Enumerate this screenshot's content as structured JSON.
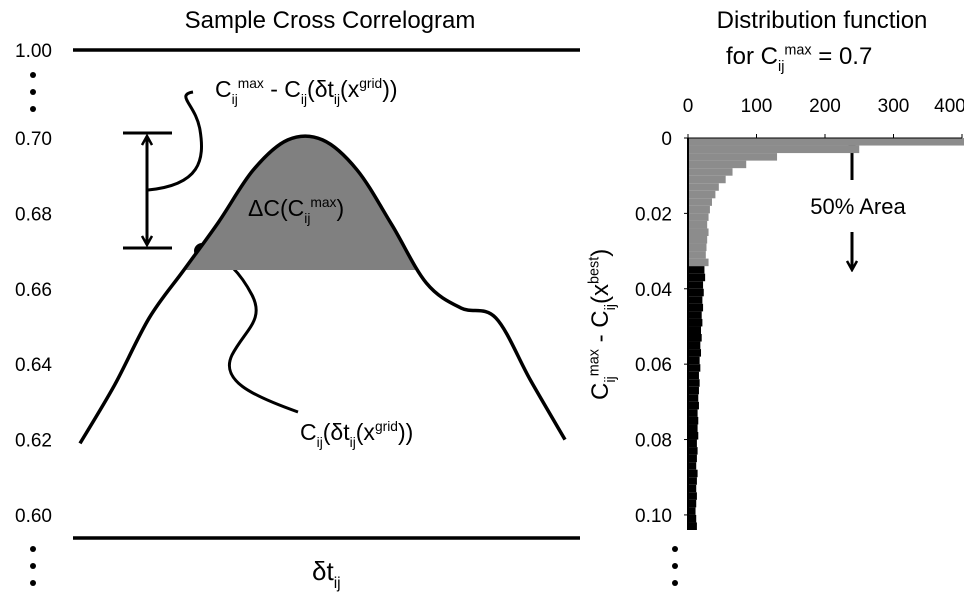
{
  "chart_data": [
    {
      "type": "line",
      "title": "Sample Cross Correlogram",
      "xlabel": [
        {
          "text": "δt",
          "pos": "base"
        },
        {
          "text": "ij",
          "pos": "sub"
        }
      ],
      "categories": [
        null,
        null,
        null,
        null,
        null,
        null,
        null,
        null,
        null,
        null,
        null,
        null,
        null,
        null,
        null
      ],
      "values": [
        0.619,
        0.6345,
        0.6523,
        0.665,
        0.6777,
        0.6915,
        0.6995,
        0.6995,
        0.6915,
        0.677,
        0.6615,
        0.6549,
        0.6523,
        0.6358,
        0.62
      ],
      "color": "#000000",
      "fill_color": "#808080",
      "fill_above": 0.665,
      "ylim": [
        0.6,
        0.7
      ],
      "yticks": [
        {
          "value": 0.6,
          "label": "0.60"
        },
        0.62,
        0.64,
        0.66,
        0.68,
        {
          "value": 0.7,
          "label": "0.70"
        }
      ],
      "top_tick": {
        "value": 1,
        "label": "1.00"
      },
      "annotations": [
        [
          {
            "text": "C",
            "pos": "base"
          },
          {
            "text": "ij",
            "pos": "sub"
          },
          {
            "text": "max",
            "pos": "sup"
          },
          {
            "text": " - C",
            "pos": "base"
          },
          {
            "text": "ij",
            "pos": "sub"
          },
          {
            "text": "(δt",
            "pos": "base"
          },
          {
            "text": "ij",
            "pos": "sub"
          },
          {
            "text": "(x",
            "pos": "base"
          },
          {
            "text": "grid",
            "pos": "sup"
          },
          {
            "text": "))",
            "pos": "base"
          }
        ],
        [
          {
            "text": "ΔC(C",
            "pos": "base"
          },
          {
            "text": "ij",
            "pos": "sub"
          },
          {
            "text": "max",
            "pos": "sup"
          },
          {
            "text": ")",
            "pos": "base"
          }
        ],
        [
          {
            "text": "C",
            "pos": "base"
          },
          {
            "text": "ij",
            "pos": "sub"
          },
          {
            "text": "(δt",
            "pos": "base"
          },
          {
            "text": "ij",
            "pos": "sub"
          },
          {
            "text": "(x",
            "pos": "base"
          },
          {
            "text": "grid",
            "pos": "sup"
          },
          {
            "text": "))",
            "pos": "base"
          }
        ]
      ]
    },
    {
      "type": "histogram",
      "title": [
        {
          "text": "Distribution function",
          "pos": "base"
        }
      ],
      "subtitle": [
        {
          "text": "for C",
          "pos": "base"
        },
        {
          "text": "ij",
          "pos": "sub"
        },
        {
          "text": "max",
          "pos": "sup"
        },
        {
          "text": " = 0.7",
          "pos": "base"
        }
      ],
      "ylabel": [
        {
          "text": "C",
          "pos": "base"
        },
        {
          "text": "ij",
          "pos": "sub"
        },
        {
          "text": "max",
          "pos": "sup"
        },
        {
          "text": " - C",
          "pos": "base"
        },
        {
          "text": "ij",
          "pos": "sub"
        },
        {
          "text": "(x",
          "pos": "base"
        },
        {
          "text": "best",
          "pos": "sup"
        },
        {
          "text": ")",
          "pos": "base"
        }
      ],
      "annotation": "50% Area",
      "bins": [
        0,
        0.002,
        0.004,
        0.006,
        0.008,
        0.01,
        0.012,
        0.014,
        0.016,
        0.018,
        0.02,
        0.022,
        0.024,
        0.026,
        0.028,
        0.03,
        0.032,
        0.034,
        0.036,
        0.038,
        0.04,
        0.042,
        0.044,
        0.046,
        0.048,
        0.05,
        0.052,
        0.054,
        0.056,
        0.058,
        0.06,
        0.062,
        0.064,
        0.066,
        0.068,
        0.07,
        0.072,
        0.074,
        0.076,
        0.078,
        0.08,
        0.082,
        0.084,
        0.086,
        0.088,
        0.09,
        0.092,
        0.094,
        0.096,
        0.098,
        0.1,
        0.102,
        0.104
      ],
      "counts": [
        410,
        250,
        130,
        85,
        65,
        55,
        45,
        40,
        35,
        32,
        30,
        28,
        30,
        28,
        27,
        26,
        30,
        24,
        25,
        22,
        23,
        21,
        22,
        20,
        21,
        19,
        20,
        18,
        19,
        17,
        18,
        16,
        17,
        16,
        15,
        16,
        14,
        15,
        14,
        15,
        13,
        14,
        13,
        12,
        14,
        13,
        12,
        13,
        12,
        11,
        12,
        13
      ],
      "colors": [
        "#8c8c8c",
        "#8c8c8c",
        "#8c8c8c",
        "#8c8c8c",
        "#8c8c8c",
        "#8c8c8c",
        "#8c8c8c",
        "#8c8c8c",
        "#8c8c8c",
        "#8c8c8c",
        "#8c8c8c",
        "#8c8c8c",
        "#8c8c8c",
        "#8c8c8c",
        "#8c8c8c",
        "#8c8c8c",
        "#8c8c8c",
        "#000000",
        "#000000",
        "#000000",
        "#000000",
        "#000000",
        "#000000",
        "#000000",
        "#000000",
        "#000000",
        "#000000",
        "#000000",
        "#000000",
        "#000000",
        "#000000",
        "#000000",
        "#000000",
        "#000000",
        "#000000",
        "#000000",
        "#000000",
        "#000000",
        "#000000",
        "#000000",
        "#000000",
        "#000000",
        "#000000",
        "#000000",
        "#000000",
        "#000000",
        "#000000",
        "#000000",
        "#000000",
        "#000000",
        "#000000",
        "#000000"
      ],
      "xlim": [
        0,
        400
      ],
      "xticks": [
        0,
        100,
        200,
        300,
        400
      ],
      "ylim": [
        0,
        0.104
      ],
      "yticks": [
        0,
        0.02,
        0.04,
        0.06,
        0.08,
        {
          "value": 0.1,
          "label": "0.10"
        }
      ]
    }
  ]
}
